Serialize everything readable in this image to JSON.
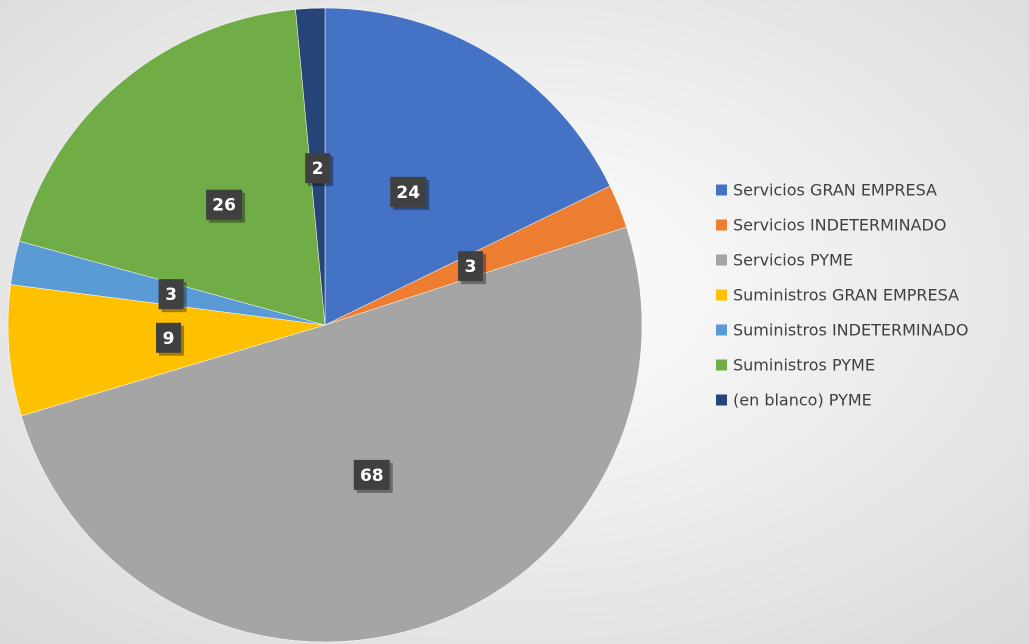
{
  "chart_data": {
    "type": "pie",
    "categories": [
      "Servicios GRAN EMPRESA",
      "Servicios INDETERMINADO",
      "Servicios PYME",
      "Suministros GRAN EMPRESA",
      "Suministros INDETERMINADO",
      "Suministros PYME",
      "(en blanco) PYME"
    ],
    "values": [
      24,
      3,
      68,
      9,
      3,
      26,
      2
    ],
    "colors": [
      "#4472c4",
      "#ed7d31",
      "#a5a5a5",
      "#ffc000",
      "#5b9bd5",
      "#70ad47",
      "#264478"
    ],
    "legend": "right"
  }
}
